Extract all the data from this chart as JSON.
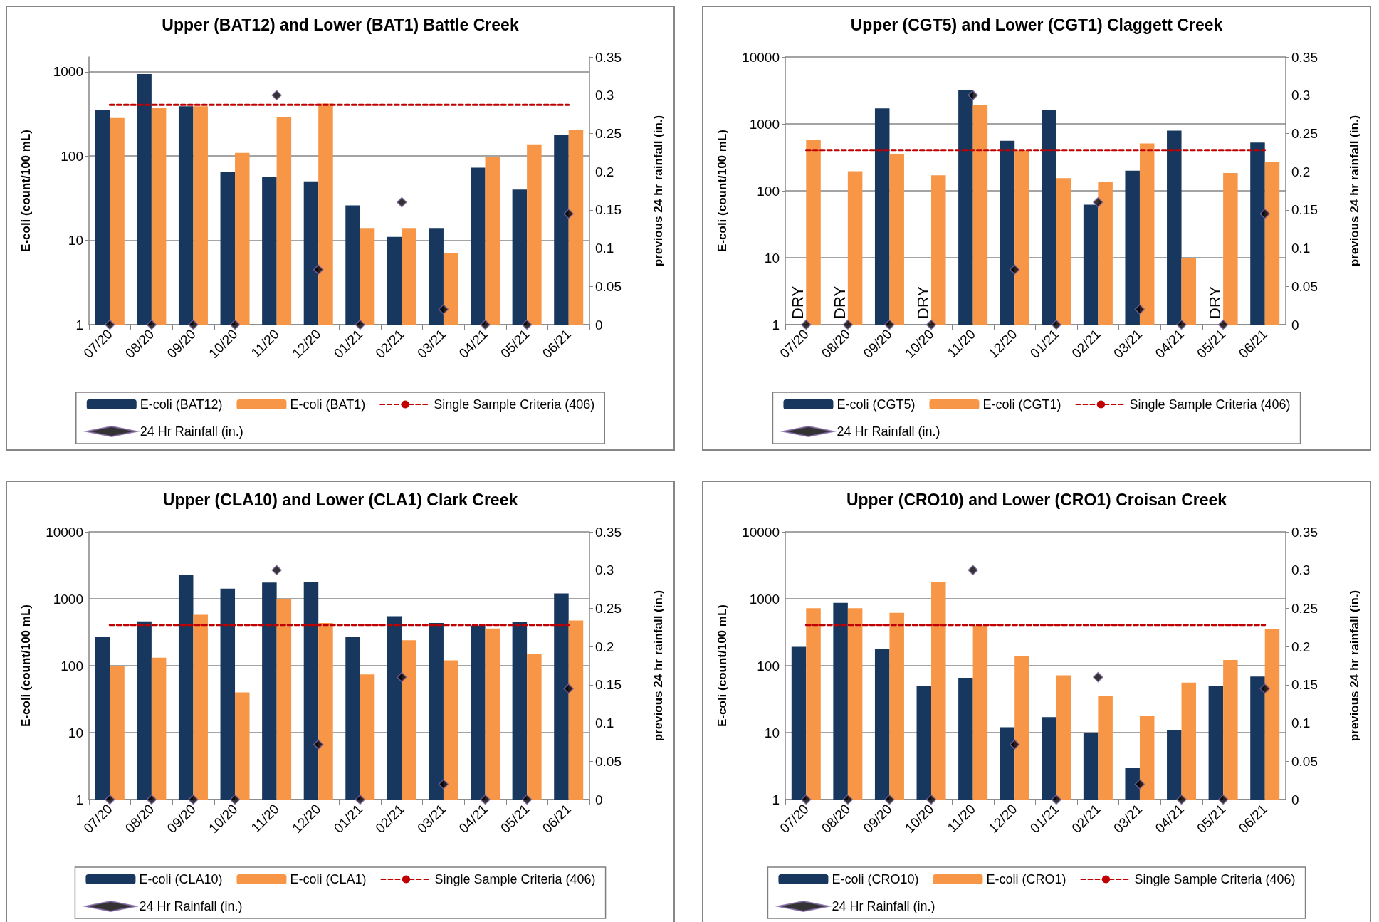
{
  "chart_data": [
    {
      "type": "bar",
      "title": "Upper (BAT12) and Lower (BAT1) Battle Creek",
      "ylabel": "E-coli (count/100 mL)",
      "y2label": "previous 24 hr rainfall (in.)",
      "categories": [
        "07/20",
        "08/20",
        "09/20",
        "10/20",
        "11/20",
        "12/20",
        "01/21",
        "02/21",
        "03/21",
        "04/21",
        "05/21",
        "06/21"
      ],
      "log": "y",
      "grid": "y",
      "legend": "bottom",
      "ylim": [
        1,
        1500
      ],
      "yticks": [
        1,
        10,
        100,
        1000
      ],
      "y2lim": [
        0,
        0.35
      ],
      "y2ticks": [
        0,
        0.05,
        0.1,
        0.15,
        0.2,
        0.25,
        0.3,
        0.35
      ],
      "series": [
        {
          "name": "E-coli (BAT12)",
          "color": "#17375e",
          "values": [
            350,
            940,
            390,
            65,
            56,
            50,
            26,
            11,
            14,
            73,
            40,
            177
          ]
        },
        {
          "name": "E-coli (BAT1)",
          "color": "#f79646",
          "values": [
            283,
            370,
            390,
            109,
            290,
            420,
            14,
            14,
            7,
            98,
            138,
            204
          ]
        },
        {
          "name": "Single Sample Criteria (406)",
          "type": "line",
          "color": "#c00000",
          "line_style": "dashed",
          "marker": "none",
          "values": [
            406,
            406,
            406,
            406,
            406,
            406,
            406,
            406,
            406,
            406,
            406,
            406
          ]
        },
        {
          "name": "24 Hr Rainfall (in.)",
          "type": "scatter",
          "axis": "y2",
          "color": "#000000",
          "marker": "diamond",
          "values": [
            0,
            0,
            0,
            0,
            0.3,
            0.072,
            0,
            0.16,
            0.02,
            0,
            0,
            0.145
          ]
        }
      ]
    },
    {
      "type": "bar",
      "title": "Upper (CGT5) and Lower (CGT1) Claggett Creek",
      "ylabel": "E-coli (count/100 mL)",
      "y2label": "previous 24 hr rainfall (in.)",
      "categories": [
        "07/20",
        "08/20",
        "09/20",
        "10/20",
        "11/20",
        "12/20",
        "01/21",
        "02/21",
        "03/21",
        "04/21",
        "05/21",
        "06/21"
      ],
      "log": "y",
      "grid": "y",
      "legend": "bottom",
      "ylim": [
        1,
        10000
      ],
      "yticks": [
        1,
        10,
        100,
        1000,
        10000
      ],
      "y2lim": [
        0,
        0.35
      ],
      "y2ticks": [
        0,
        0.05,
        0.1,
        0.15,
        0.2,
        0.25,
        0.3,
        0.35
      ],
      "annotations": [
        {
          "text": "DRY",
          "x": "07/20",
          "y": 1
        },
        {
          "text": "DRY",
          "x": "08/20",
          "y": 1
        },
        {
          "text": "DRY",
          "x": "10/20",
          "y": 1
        },
        {
          "text": "DRY",
          "x": "05/21",
          "y": 1
        }
      ],
      "series": [
        {
          "name": "E-coli (CGT5)",
          "color": "#17375e",
          "values": [
            null,
            null,
            1700,
            null,
            3250,
            560,
            1600,
            62,
            200,
            790,
            null,
            525
          ]
        },
        {
          "name": "E-coli (CGT1)",
          "color": "#f79646",
          "values": [
            580,
            196,
            357,
            170,
            1900,
            400,
            154,
            134,
            510,
            10,
            185,
            270
          ]
        },
        {
          "name": "Single Sample Criteria (406)",
          "type": "line",
          "color": "#c00000",
          "line_style": "dashed",
          "marker": "none",
          "values": [
            406,
            406,
            406,
            406,
            406,
            406,
            406,
            406,
            406,
            406,
            406,
            406
          ]
        },
        {
          "name": "24 Hr Rainfall (in.)",
          "type": "scatter",
          "axis": "y2",
          "color": "#000000",
          "marker": "diamond",
          "values": [
            0,
            0,
            0,
            0,
            0.3,
            0.072,
            0,
            0.16,
            0.02,
            0,
            0,
            0.145
          ]
        }
      ]
    },
    {
      "type": "bar",
      "title": "Upper (CLA10) and Lower (CLA1) Clark Creek",
      "ylabel": "E-coli (count/100 mL)",
      "y2label": "previous 24 hr rainfall (in.)",
      "categories": [
        "07/20",
        "08/20",
        "09/20",
        "10/20",
        "11/20",
        "12/20",
        "01/21",
        "02/21",
        "03/21",
        "04/21",
        "05/21",
        "06/21"
      ],
      "log": "y",
      "grid": "y",
      "legend": "bottom",
      "ylim": [
        1,
        10000
      ],
      "yticks": [
        1,
        10,
        100,
        1000,
        10000
      ],
      "y2lim": [
        0,
        0.35
      ],
      "y2ticks": [
        0,
        0.05,
        0.1,
        0.15,
        0.2,
        0.25,
        0.3,
        0.35
      ],
      "series": [
        {
          "name": "E-coli (CLA10)",
          "color": "#17375e",
          "values": [
            270,
            460,
            2300,
            1420,
            1750,
            1800,
            270,
            550,
            435,
            400,
            445,
            1200
          ]
        },
        {
          "name": "E-coli (CLA1)",
          "color": "#f79646",
          "values": [
            100,
            132,
            575,
            40,
            1000,
            435,
            74,
            240,
            120,
            360,
            148,
            475
          ]
        },
        {
          "name": "Single Sample Criteria (406)",
          "type": "line",
          "color": "#c00000",
          "line_style": "dashed",
          "marker": "none",
          "values": [
            406,
            406,
            406,
            406,
            406,
            406,
            406,
            406,
            406,
            406,
            406,
            406
          ]
        },
        {
          "name": "24 Hr Rainfall (in.)",
          "type": "scatter",
          "axis": "y2",
          "color": "#000000",
          "marker": "diamond",
          "values": [
            0,
            0,
            0,
            0,
            0.3,
            0.072,
            0,
            0.16,
            0.02,
            0,
            0,
            0.145
          ]
        }
      ]
    },
    {
      "type": "bar",
      "title": "Upper (CRO10) and Lower (CRO1) Croisan Creek",
      "ylabel": "E-coli (count/100 mL)",
      "y2label": "previous 24 hr rainfall (in.)",
      "categories": [
        "07/20",
        "08/20",
        "09/20",
        "10/20",
        "11/20",
        "12/20",
        "01/21",
        "02/21",
        "03/21",
        "04/21",
        "05/21",
        "06/21"
      ],
      "log": "y",
      "grid": "y",
      "legend": "bottom",
      "ylim": [
        1,
        10000
      ],
      "yticks": [
        1,
        10,
        100,
        1000,
        10000
      ],
      "y2lim": [
        0,
        0.35
      ],
      "y2ticks": [
        0,
        0.05,
        0.1,
        0.15,
        0.2,
        0.25,
        0.3,
        0.35
      ],
      "series": [
        {
          "name": "E-coli (CRO10)",
          "color": "#17375e",
          "values": [
            191,
            870,
            179,
            49,
            66,
            12,
            17,
            10,
            3,
            11,
            50,
            69
          ]
        },
        {
          "name": "E-coli (CRO1)",
          "color": "#f79646",
          "values": [
            725,
            725,
            615,
            1770,
            400,
            140,
            72,
            35,
            18,
            56,
            122,
            350
          ]
        },
        {
          "name": "Single Sample Criteria (406)",
          "type": "line",
          "color": "#c00000",
          "line_style": "dashed",
          "marker": "none",
          "values": [
            406,
            406,
            406,
            406,
            406,
            406,
            406,
            406,
            406,
            406,
            406,
            406
          ]
        },
        {
          "name": "24 Hr Rainfall (in.)",
          "type": "scatter",
          "axis": "y2",
          "color": "#000000",
          "marker": "diamond",
          "values": [
            0,
            0,
            0,
            0,
            0.3,
            0.072,
            0,
            0.16,
            0.02,
            0,
            0,
            0.145
          ]
        }
      ]
    }
  ]
}
